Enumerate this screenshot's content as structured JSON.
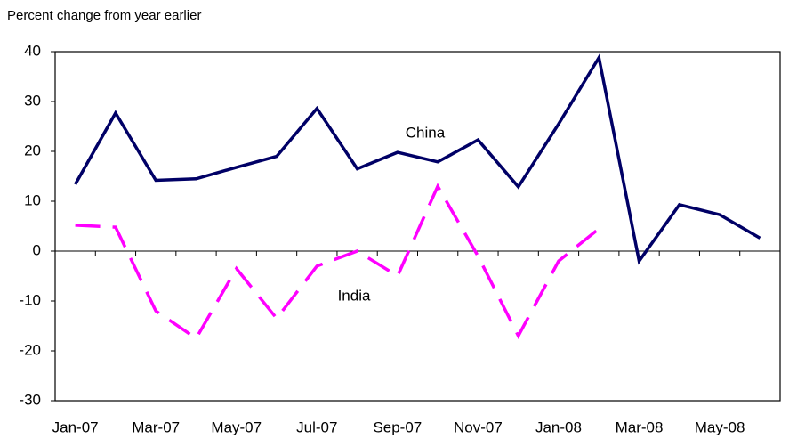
{
  "chart_data": {
    "type": "line",
    "y_axis_label": "Percent change from year earlier",
    "categories": [
      "Jan-07",
      null,
      "Mar-07",
      null,
      "May-07",
      null,
      "Jul-07",
      null,
      "Sep-07",
      null,
      "Nov-07",
      null,
      "Jan-08",
      null,
      "Mar-08",
      null,
      "May-08",
      null
    ],
    "series": [
      {
        "name": "China",
        "color": "#000066",
        "dashed": false,
        "values": [
          13.4,
          27.7,
          14.2,
          14.5,
          16.8,
          19.0,
          28.6,
          16.5,
          19.8,
          17.9,
          22.3,
          12.9,
          25.5,
          38.8,
          -2.0,
          9.3,
          7.3,
          2.6
        ]
      },
      {
        "name": "India",
        "color": "#ff00ff",
        "dashed": true,
        "values": [
          5.2,
          4.8,
          -12.0,
          -17.5,
          -3.5,
          -13.5,
          -3.0,
          0.0,
          -5.0,
          13.0,
          -1.0,
          -17.0,
          -2.0,
          4.5,
          null,
          null,
          null,
          null
        ]
      }
    ],
    "ylim": [
      -30,
      40
    ],
    "yticks": [
      -30,
      -20,
      -10,
      0,
      10,
      20,
      30,
      40
    ],
    "grid": false
  }
}
